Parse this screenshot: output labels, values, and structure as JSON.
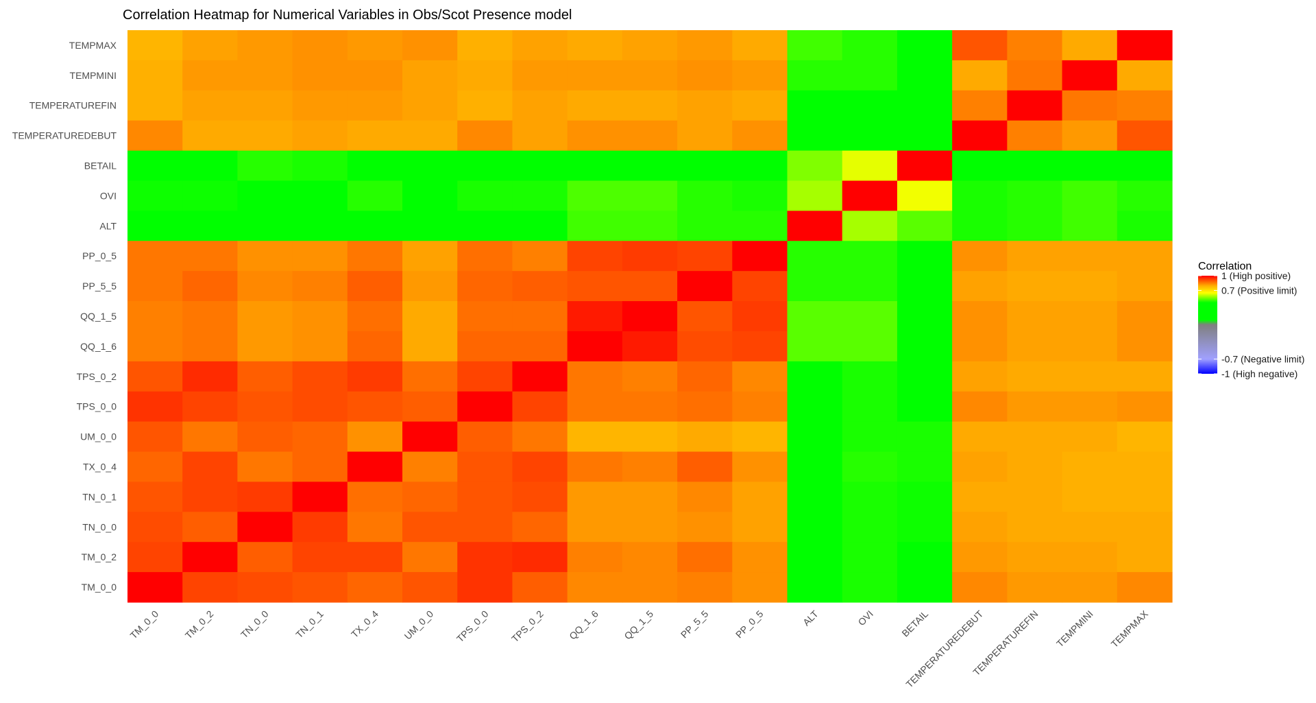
{
  "chart_data": {
    "type": "heatmap",
    "title": "Correlation Heatmap for Numerical Variables in Obs/Scot Presence model",
    "xlabel": "",
    "ylabel": "",
    "x_categories": [
      "TM_0_0",
      "TM_0_2",
      "TN_0_0",
      "TN_0_1",
      "TX_0_4",
      "UM_0_0",
      "TPS_0_0",
      "TPS_0_2",
      "QQ_1_6",
      "QQ_1_5",
      "PP_5_5",
      "PP_0_5",
      "ALT",
      "OVI",
      "BETAIL",
      "TEMPERATUREDEBUT",
      "TEMPERATUREFIN",
      "TEMPMINI",
      "TEMPMAX"
    ],
    "y_categories_top_to_bottom": [
      "TEMPMAX",
      "TEMPMINI",
      "TEMPERATUREFIN",
      "TEMPERATUREDEBUT",
      "BETAIL",
      "OVI",
      "ALT",
      "PP_0_5",
      "PP_5_5",
      "QQ_1_5",
      "QQ_1_6",
      "TPS_0_2",
      "TPS_0_0",
      "UM_0_0",
      "TX_0_4",
      "TN_0_1",
      "TN_0_0",
      "TM_0_2",
      "TM_0_0"
    ],
    "values_by_row": [
      [
        0.78,
        0.81,
        0.82,
        0.83,
        0.82,
        0.83,
        0.79,
        0.81,
        0.8,
        0.81,
        0.82,
        0.8,
        0.5,
        0.48,
        0.42,
        0.9,
        0.85,
        0.8,
        1.0
      ],
      [
        0.79,
        0.82,
        0.82,
        0.83,
        0.83,
        0.81,
        0.8,
        0.82,
        0.82,
        0.82,
        0.83,
        0.82,
        0.48,
        0.48,
        0.42,
        0.8,
        0.86,
        1.0,
        0.8
      ],
      [
        0.79,
        0.81,
        0.81,
        0.82,
        0.82,
        0.81,
        0.79,
        0.81,
        0.8,
        0.8,
        0.81,
        0.8,
        0.45,
        0.45,
        0.4,
        0.85,
        1.0,
        0.86,
        0.85
      ],
      [
        0.84,
        0.8,
        0.8,
        0.81,
        0.8,
        0.8,
        0.84,
        0.81,
        0.83,
        0.83,
        0.81,
        0.83,
        0.45,
        0.45,
        0.42,
        1.0,
        0.85,
        0.82,
        0.9
      ],
      [
        0.45,
        0.45,
        0.48,
        0.47,
        0.45,
        0.44,
        0.43,
        0.43,
        0.43,
        0.43,
        0.44,
        0.44,
        0.55,
        0.63,
        1.0,
        0.44,
        0.43,
        0.44,
        0.42
      ],
      [
        0.46,
        0.46,
        0.45,
        0.44,
        0.48,
        0.45,
        0.47,
        0.47,
        0.51,
        0.51,
        0.48,
        0.47,
        0.58,
        1.0,
        0.64,
        0.47,
        0.48,
        0.5,
        0.48
      ],
      [
        0.38,
        0.39,
        0.36,
        0.37,
        0.39,
        0.37,
        0.38,
        0.38,
        0.5,
        0.5,
        0.48,
        0.48,
        1.0,
        0.58,
        0.52,
        0.47,
        0.48,
        0.5,
        0.47
      ],
      [
        0.86,
        0.86,
        0.83,
        0.83,
        0.86,
        0.81,
        0.87,
        0.85,
        0.92,
        0.93,
        0.92,
        1.0,
        0.48,
        0.48,
        0.45,
        0.83,
        0.81,
        0.81,
        0.81
      ],
      [
        0.86,
        0.88,
        0.84,
        0.85,
        0.89,
        0.82,
        0.88,
        0.89,
        0.9,
        0.9,
        1.0,
        0.92,
        0.48,
        0.48,
        0.45,
        0.81,
        0.8,
        0.8,
        0.81
      ],
      [
        0.85,
        0.86,
        0.82,
        0.83,
        0.87,
        0.8,
        0.87,
        0.87,
        0.97,
        1.0,
        0.9,
        0.93,
        0.52,
        0.52,
        0.44,
        0.83,
        0.81,
        0.81,
        0.83
      ],
      [
        0.85,
        0.86,
        0.82,
        0.83,
        0.88,
        0.8,
        0.88,
        0.88,
        1.0,
        0.97,
        0.91,
        0.92,
        0.52,
        0.52,
        0.44,
        0.83,
        0.81,
        0.81,
        0.83
      ],
      [
        0.9,
        0.95,
        0.89,
        0.91,
        0.93,
        0.87,
        0.92,
        1.0,
        0.86,
        0.85,
        0.88,
        0.84,
        0.4,
        0.47,
        0.45,
        0.81,
        0.8,
        0.8,
        0.8
      ],
      [
        0.94,
        0.92,
        0.9,
        0.91,
        0.9,
        0.89,
        1.0,
        0.92,
        0.86,
        0.86,
        0.87,
        0.85,
        0.4,
        0.47,
        0.45,
        0.84,
        0.82,
        0.82,
        0.83
      ],
      [
        0.9,
        0.86,
        0.89,
        0.88,
        0.83,
        1.0,
        0.89,
        0.86,
        0.78,
        0.78,
        0.8,
        0.78,
        0.4,
        0.47,
        0.47,
        0.8,
        0.8,
        0.8,
        0.78
      ],
      [
        0.88,
        0.92,
        0.86,
        0.88,
        1.0,
        0.85,
        0.9,
        0.92,
        0.86,
        0.85,
        0.89,
        0.83,
        0.45,
        0.48,
        0.47,
        0.81,
        0.8,
        0.79,
        0.79
      ],
      [
        0.9,
        0.92,
        0.93,
        1.0,
        0.87,
        0.88,
        0.9,
        0.91,
        0.82,
        0.82,
        0.84,
        0.81,
        0.39,
        0.47,
        0.46,
        0.8,
        0.8,
        0.79,
        0.79
      ],
      [
        0.91,
        0.89,
        1.0,
        0.93,
        0.86,
        0.9,
        0.9,
        0.88,
        0.82,
        0.82,
        0.83,
        0.81,
        0.35,
        0.47,
        0.46,
        0.81,
        0.8,
        0.8,
        0.8
      ],
      [
        0.92,
        1.0,
        0.89,
        0.92,
        0.92,
        0.86,
        0.94,
        0.95,
        0.85,
        0.84,
        0.87,
        0.83,
        0.4,
        0.47,
        0.45,
        0.82,
        0.81,
        0.81,
        0.8
      ],
      [
        1.0,
        0.92,
        0.91,
        0.9,
        0.88,
        0.9,
        0.94,
        0.89,
        0.84,
        0.84,
        0.85,
        0.83,
        0.4,
        0.47,
        0.45,
        0.84,
        0.82,
        0.82,
        0.84
      ]
    ],
    "color_scale": {
      "limits": [
        -1,
        1
      ],
      "stops": [
        {
          "value": -1.0,
          "color": "#0000ff"
        },
        {
          "value": -0.7,
          "color": "#a0a0ff"
        },
        {
          "value": 0.0,
          "color": "#808080"
        },
        {
          "value": 0.1,
          "color": "#00ff00"
        },
        {
          "value": 0.45,
          "color": "#00ff00"
        },
        {
          "value": 0.65,
          "color": "#ffff00"
        },
        {
          "value": 0.8,
          "color": "#ffaa00"
        },
        {
          "value": 1.0,
          "color": "#ff0000"
        }
      ]
    },
    "legend": {
      "title": "Correlation",
      "placement": "right",
      "labels": [
        {
          "value": 1.0,
          "text": "1 (High positive)"
        },
        {
          "value": 0.7,
          "text": "0.7 (Positive limit)"
        },
        {
          "value": -0.7,
          "text": "-0.7 (Negative limit)"
        },
        {
          "value": -1.0,
          "text": "-1 (High negative)"
        }
      ]
    },
    "grid": true
  }
}
